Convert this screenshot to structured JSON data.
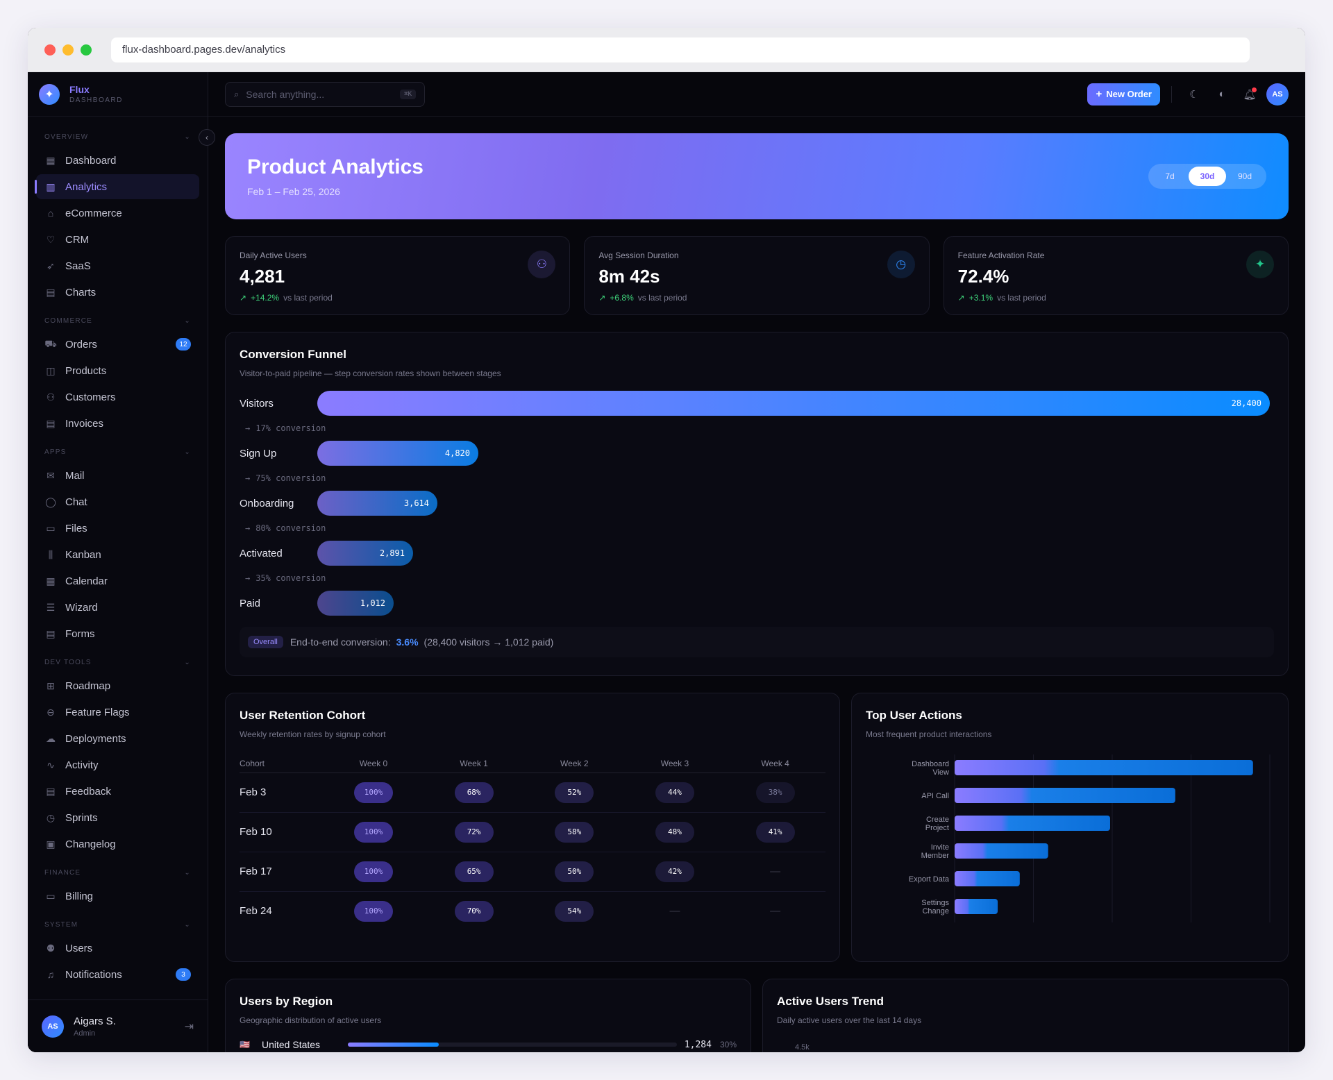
{
  "browser": {
    "url": "flux-dashboard.pages.dev/analytics"
  },
  "brand": {
    "name": "Flux",
    "sub": "DASHBOARD"
  },
  "sidebar": {
    "sections": [
      {
        "title": "OVERVIEW",
        "items": [
          {
            "label": "Dashboard",
            "icon": "dashboard-icon"
          },
          {
            "label": "Analytics",
            "icon": "chart-icon",
            "active": true
          },
          {
            "label": "eCommerce",
            "icon": "store-icon"
          },
          {
            "label": "CRM",
            "icon": "handshake-icon"
          },
          {
            "label": "SaaS",
            "icon": "rocket-icon"
          },
          {
            "label": "Charts",
            "icon": "bar-chart-icon"
          }
        ]
      },
      {
        "title": "COMMERCE",
        "items": [
          {
            "label": "Orders",
            "icon": "cart-icon",
            "badge": "12"
          },
          {
            "label": "Products",
            "icon": "box-icon"
          },
          {
            "label": "Customers",
            "icon": "users-icon"
          },
          {
            "label": "Invoices",
            "icon": "invoice-icon"
          }
        ]
      },
      {
        "title": "APPS",
        "items": [
          {
            "label": "Mail",
            "icon": "mail-icon"
          },
          {
            "label": "Chat",
            "icon": "chat-icon"
          },
          {
            "label": "Files",
            "icon": "folder-icon"
          },
          {
            "label": "Kanban",
            "icon": "kanban-icon"
          },
          {
            "label": "Calendar",
            "icon": "calendar-icon"
          },
          {
            "label": "Wizard",
            "icon": "list-check-icon"
          },
          {
            "label": "Forms",
            "icon": "form-icon"
          }
        ]
      },
      {
        "title": "DEV TOOLS",
        "items": [
          {
            "label": "Roadmap",
            "icon": "map-icon"
          },
          {
            "label": "Feature Flags",
            "icon": "toggle-icon"
          },
          {
            "label": "Deployments",
            "icon": "cloud-upload-icon"
          },
          {
            "label": "Activity",
            "icon": "activity-icon"
          },
          {
            "label": "Feedback",
            "icon": "feedback-icon"
          },
          {
            "label": "Sprints",
            "icon": "timer-icon"
          },
          {
            "label": "Changelog",
            "icon": "changelog-icon"
          }
        ]
      },
      {
        "title": "FINANCE",
        "items": [
          {
            "label": "Billing",
            "icon": "credit-card-icon"
          }
        ]
      },
      {
        "title": "SYSTEM",
        "items": [
          {
            "label": "Users",
            "icon": "user-gear-icon"
          },
          {
            "label": "Notifications",
            "icon": "bell-icon",
            "badge": "3"
          }
        ]
      }
    ],
    "user": {
      "initials": "AS",
      "name": "Aigars S.",
      "role": "Admin"
    }
  },
  "topbar": {
    "search_placeholder": "Search anything...",
    "shortcut": "⌘K",
    "new_order": "New Order",
    "avatar": "AS"
  },
  "hero": {
    "title": "Product Analytics",
    "dates": "Feb 1 – Feb 25, 2026",
    "ranges": [
      "7d",
      "30d",
      "90d"
    ],
    "selected_range": "30d"
  },
  "kpis": [
    {
      "label": "Daily Active Users",
      "value": "4,281",
      "change": "+14.2%",
      "suffix": "vs last period",
      "icon": "users-icon",
      "color": "#8b7cff"
    },
    {
      "label": "Avg Session Duration",
      "value": "8m 42s",
      "change": "+6.8%",
      "suffix": "vs last period",
      "icon": "clock-icon",
      "color": "#2f8cff"
    },
    {
      "label": "Feature Activation Rate",
      "value": "72.4%",
      "change": "+3.1%",
      "suffix": "vs last period",
      "icon": "sparkle-icon",
      "color": "#22c58b"
    }
  ],
  "funnel": {
    "title": "Conversion Funnel",
    "subtitle": "Visitor-to-paid pipeline — step conversion rates shown between stages",
    "max": 28400,
    "stages": [
      {
        "label": "Visitors",
        "value": 28400,
        "display": "28,400"
      },
      {
        "label": "Sign Up",
        "value": 4820,
        "display": "4,820"
      },
      {
        "label": "Onboarding",
        "value": 3614,
        "display": "3,614"
      },
      {
        "label": "Activated",
        "value": 2891,
        "display": "2,891"
      },
      {
        "label": "Paid",
        "value": 1012,
        "display": "1,012"
      }
    ],
    "conversions": [
      "17% conversion",
      "75% conversion",
      "80% conversion",
      "35% conversion"
    ],
    "overall": {
      "tag": "Overall",
      "text": "End-to-end conversion:",
      "value": "3.6%",
      "detail": "(28,400 visitors → 1,012 paid)"
    }
  },
  "cohort": {
    "title": "User Retention Cohort",
    "subtitle": "Weekly retention rates by signup cohort",
    "headers": [
      "Cohort",
      "Week 0",
      "Week 1",
      "Week 2",
      "Week 3",
      "Week 4"
    ],
    "rows": [
      {
        "cohort": "Feb 3",
        "values": [
          "100%",
          "68%",
          "52%",
          "44%",
          "38%"
        ]
      },
      {
        "cohort": "Feb 10",
        "values": [
          "100%",
          "72%",
          "58%",
          "48%",
          "41%"
        ]
      },
      {
        "cohort": "Feb 17",
        "values": [
          "100%",
          "65%",
          "50%",
          "42%",
          "—"
        ]
      },
      {
        "cohort": "Feb 24",
        "values": [
          "100%",
          "70%",
          "54%",
          "—",
          "—"
        ]
      }
    ]
  },
  "top_actions": {
    "title": "Top User Actions",
    "subtitle": "Most frequent product interactions",
    "chart_data": {
      "type": "bar",
      "orientation": "horizontal",
      "categories": [
        "Dashboard View",
        "API Call",
        "Create Project",
        "Invite Member",
        "Export Data",
        "Settings Change"
      ],
      "values": [
        2840,
        2100,
        1480,
        890,
        620,
        410
      ],
      "xlim": [
        0,
        3000
      ],
      "ticks": [
        "0",
        "750",
        "1.5k",
        "2.3k",
        "3.0k"
      ],
      "tick_values": [
        0,
        750,
        1500,
        2250,
        3000
      ],
      "grid": true
    }
  },
  "region": {
    "title": "Users by Region",
    "subtitle": "Geographic distribution of active users",
    "rows": [
      {
        "flag": "🇺🇸",
        "country": "United States",
        "value": "1,284",
        "pct": "30%",
        "share": 30
      }
    ]
  },
  "trend": {
    "title": "Active Users Trend",
    "subtitle": "Daily active users over the last 14 days",
    "first_tick": "4.5k"
  }
}
